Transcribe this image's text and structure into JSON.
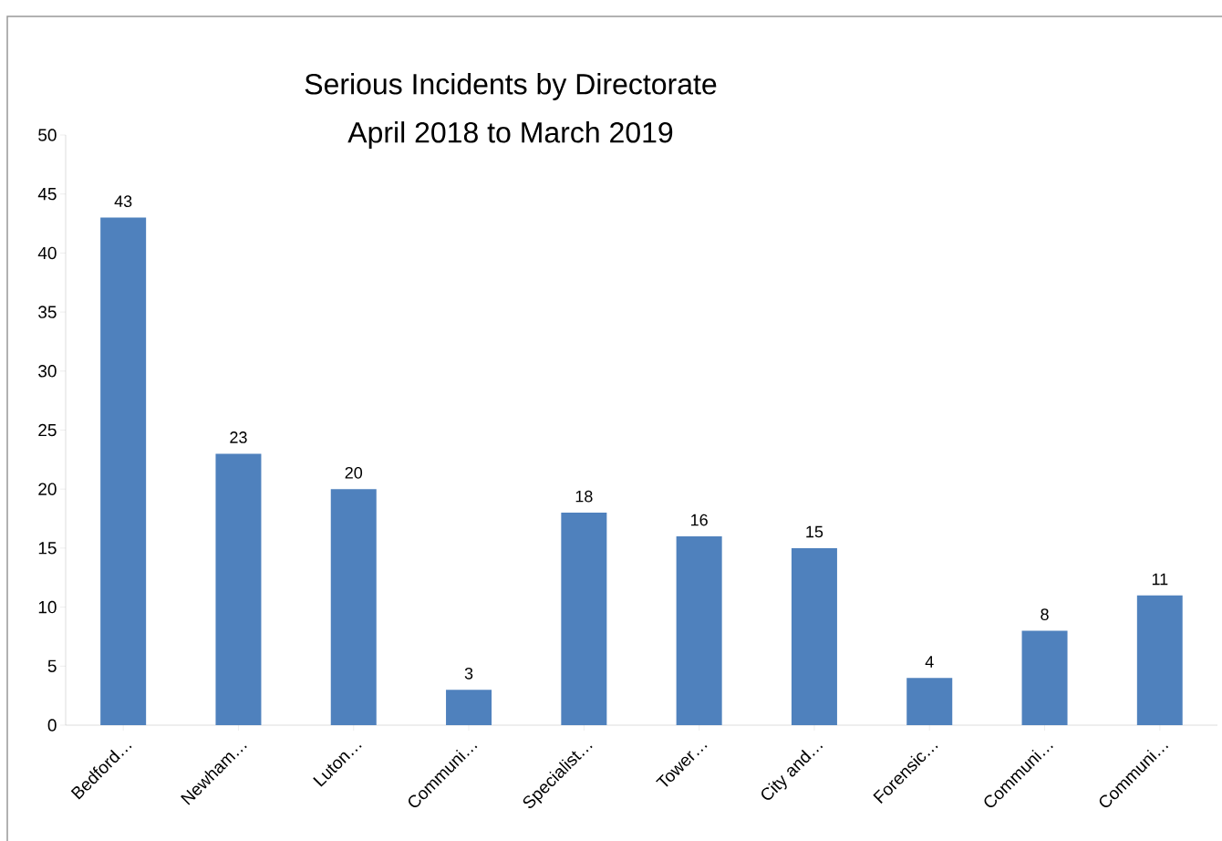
{
  "chart_data": {
    "type": "bar",
    "title": "Serious Incidents by Directorate",
    "subtitle": "April 2018 to March 2019",
    "categories": [
      "Bedford…",
      "Newham…",
      "Luton…",
      "Communi…",
      "Specialist…",
      "Tower…",
      "City and…",
      "Forensic…",
      "Communi…",
      "Communi…"
    ],
    "values": [
      43,
      23,
      20,
      3,
      18,
      16,
      15,
      4,
      8,
      11
    ],
    "color": "#4f81bd",
    "ylim": [
      0,
      50
    ],
    "yticks": [
      0,
      5,
      10,
      15,
      20,
      25,
      30,
      35,
      40,
      45,
      50
    ],
    "data_labels": true,
    "grid": false
  }
}
